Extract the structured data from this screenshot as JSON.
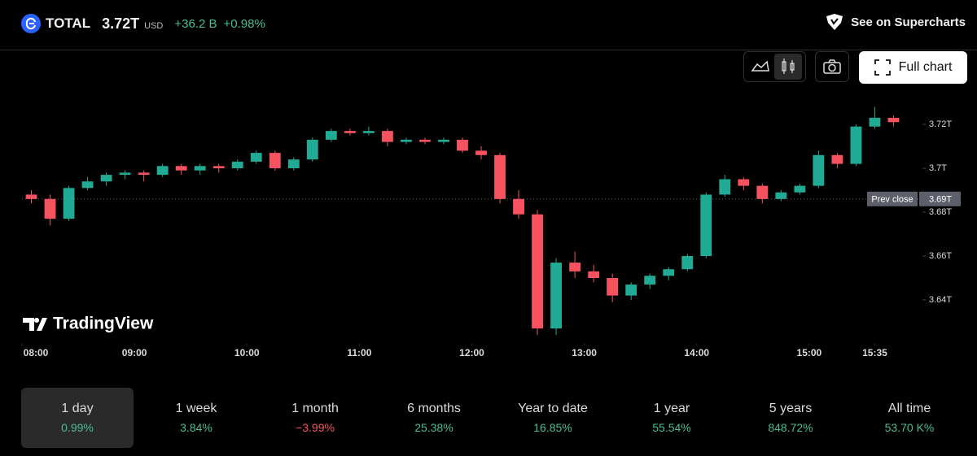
{
  "header": {
    "symbol": "TOTAL",
    "price": "3.72",
    "price_unit": "T",
    "currency": "USD",
    "change": "+36.2 B",
    "change_pct": "+0.98%",
    "supercharts": "See on Supercharts"
  },
  "buttons": {
    "full_chart": "Full chart"
  },
  "watermark": "TradingView",
  "chart_data": {
    "type": "candlestick",
    "up_color": "#22ab94",
    "down_color": "#f7525f",
    "x": [
      "08:00",
      "08:10",
      "08:20",
      "08:30",
      "08:40",
      "08:50",
      "09:00",
      "09:10",
      "09:20",
      "09:30",
      "09:40",
      "09:50",
      "10:00",
      "10:10",
      "10:20",
      "10:30",
      "10:40",
      "10:50",
      "11:00",
      "11:10",
      "11:20",
      "11:30",
      "11:40",
      "11:50",
      "12:00",
      "12:10",
      "12:20",
      "12:30",
      "12:40",
      "12:50",
      "13:00",
      "13:10",
      "13:20",
      "13:30",
      "13:40",
      "13:50",
      "14:00",
      "14:10",
      "14:20",
      "14:30",
      "14:40",
      "14:50",
      "15:00",
      "15:10",
      "15:20",
      "15:30",
      "15:40"
    ],
    "open": [
      3.688,
      3.686,
      3.677,
      3.691,
      3.694,
      3.697,
      3.698,
      3.697,
      3.701,
      3.699,
      3.701,
      3.7,
      3.703,
      3.707,
      3.7,
      3.704,
      3.713,
      3.717,
      3.716,
      3.717,
      3.712,
      3.713,
      3.712,
      3.713,
      3.708,
      3.706,
      3.686,
      3.679,
      3.627,
      3.657,
      3.653,
      3.65,
      3.642,
      3.647,
      3.651,
      3.654,
      3.66,
      3.688,
      3.695,
      3.692,
      3.686,
      3.689,
      3.692,
      3.706,
      3.702,
      3.719,
      3.723
    ],
    "high": [
      3.69,
      3.688,
      3.692,
      3.696,
      3.698,
      3.699,
      3.699,
      3.702,
      3.702,
      3.702,
      3.702,
      3.704,
      3.708,
      3.708,
      3.705,
      3.714,
      3.718,
      3.718,
      3.719,
      3.718,
      3.714,
      3.714,
      3.714,
      3.714,
      3.71,
      3.707,
      3.69,
      3.681,
      3.659,
      3.662,
      3.656,
      3.652,
      3.648,
      3.652,
      3.655,
      3.661,
      3.689,
      3.697,
      3.696,
      3.693,
      3.69,
      3.693,
      3.708,
      3.707,
      3.72,
      3.728,
      3.724
    ],
    "low": [
      3.684,
      3.674,
      3.676,
      3.69,
      3.692,
      3.695,
      3.694,
      3.696,
      3.697,
      3.697,
      3.698,
      3.699,
      3.702,
      3.699,
      3.699,
      3.703,
      3.712,
      3.715,
      3.715,
      3.71,
      3.711,
      3.711,
      3.711,
      3.707,
      3.704,
      3.684,
      3.677,
      3.624,
      3.624,
      3.65,
      3.648,
      3.639,
      3.64,
      3.645,
      3.649,
      3.653,
      3.659,
      3.687,
      3.69,
      3.684,
      3.685,
      3.688,
      3.691,
      3.7,
      3.701,
      3.718,
      3.719
    ],
    "close": [
      3.686,
      3.677,
      3.691,
      3.694,
      3.697,
      3.698,
      3.697,
      3.701,
      3.699,
      3.701,
      3.7,
      3.703,
      3.707,
      3.7,
      3.704,
      3.713,
      3.717,
      3.716,
      3.717,
      3.712,
      3.713,
      3.712,
      3.713,
      3.708,
      3.706,
      3.686,
      3.679,
      3.627,
      3.657,
      3.653,
      3.65,
      3.642,
      3.647,
      3.651,
      3.654,
      3.66,
      3.688,
      3.695,
      3.692,
      3.686,
      3.689,
      3.692,
      3.706,
      3.702,
      3.719,
      3.723,
      3.721
    ],
    "xlim": [
      "08:00",
      "16:00"
    ],
    "xticks": [
      "08:00",
      "09:00",
      "10:00",
      "11:00",
      "12:00",
      "13:00",
      "14:00",
      "15:00",
      "15:35"
    ],
    "ylim": [
      3.62,
      3.755
    ],
    "yticks": [
      {
        "value": 3.72,
        "label": "3.72T"
      },
      {
        "value": 3.7,
        "label": "3.7T"
      },
      {
        "value": 3.68,
        "label": "3.68T"
      },
      {
        "value": 3.66,
        "label": "3.66T"
      },
      {
        "value": 3.64,
        "label": "3.64T"
      }
    ],
    "prev_close": {
      "value": 3.686,
      "label": "3.69T"
    },
    "prev_close_text": "Prev close"
  },
  "periods": [
    {
      "name": "1 day",
      "change": "0.99%",
      "color": "#4bbd96",
      "selected": true
    },
    {
      "name": "1 week",
      "change": "3.84%",
      "color": "#4bbd96"
    },
    {
      "name": "1 month",
      "change": "−3.99%",
      "color": "#f7525f"
    },
    {
      "name": "6 months",
      "change": "25.38%",
      "color": "#4bbd96"
    },
    {
      "name": "Year to date",
      "change": "16.85%",
      "color": "#4bbd96"
    },
    {
      "name": "1 year",
      "change": "55.54%",
      "color": "#4bbd96"
    },
    {
      "name": "5 years",
      "change": "848.72%",
      "color": "#4bbd96"
    },
    {
      "name": "All time",
      "change": "53.70 K%",
      "color": "#4bbd96"
    }
  ]
}
